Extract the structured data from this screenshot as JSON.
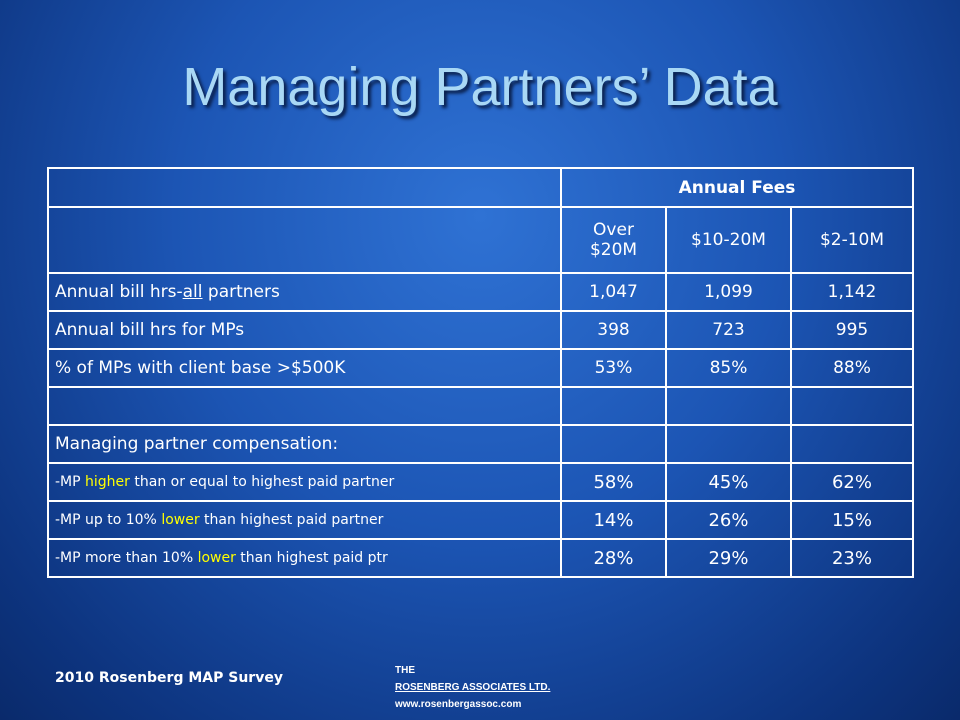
{
  "title": "Managing Partners’ Data",
  "table": {
    "group_header": "Annual Fees",
    "columns": [
      "Over $20M",
      "$10-20M",
      "$2-10M"
    ],
    "rows": [
      {
        "label": [
          "Annual bill hrs-",
          "all",
          " partners"
        ],
        "values": [
          "1,047",
          "1,099",
          "1,142"
        ]
      },
      {
        "label": [
          "Annual bill hrs for MPs"
        ],
        "values": [
          "398",
          "723",
          "995"
        ]
      },
      {
        "label": [
          "% of MPs with client base >$500K"
        ],
        "values": [
          "53%",
          "85%",
          "88%"
        ]
      },
      {
        "label": [
          "Managing partner compensation:"
        ]
      },
      {
        "label": [
          "-MP ",
          "higher",
          " than or equal to highest paid partner"
        ],
        "values": [
          "58%",
          "45%",
          "62%"
        ]
      },
      {
        "label": [
          "-MP up to 10% ",
          "lower",
          " than highest paid partner"
        ],
        "values": [
          "14%",
          "26%",
          "15%"
        ]
      },
      {
        "label": [
          "-MP more than 10% ",
          "lower",
          " than highest paid ptr"
        ],
        "values": [
          "28%",
          "29%",
          "23%"
        ]
      }
    ]
  },
  "footer": {
    "survey": "2010 Rosenberg MAP Survey",
    "firm": [
      "THE",
      "ROSENBERG ASSOCIATES LTD.",
      "www.rosenbergassoc.com"
    ]
  }
}
